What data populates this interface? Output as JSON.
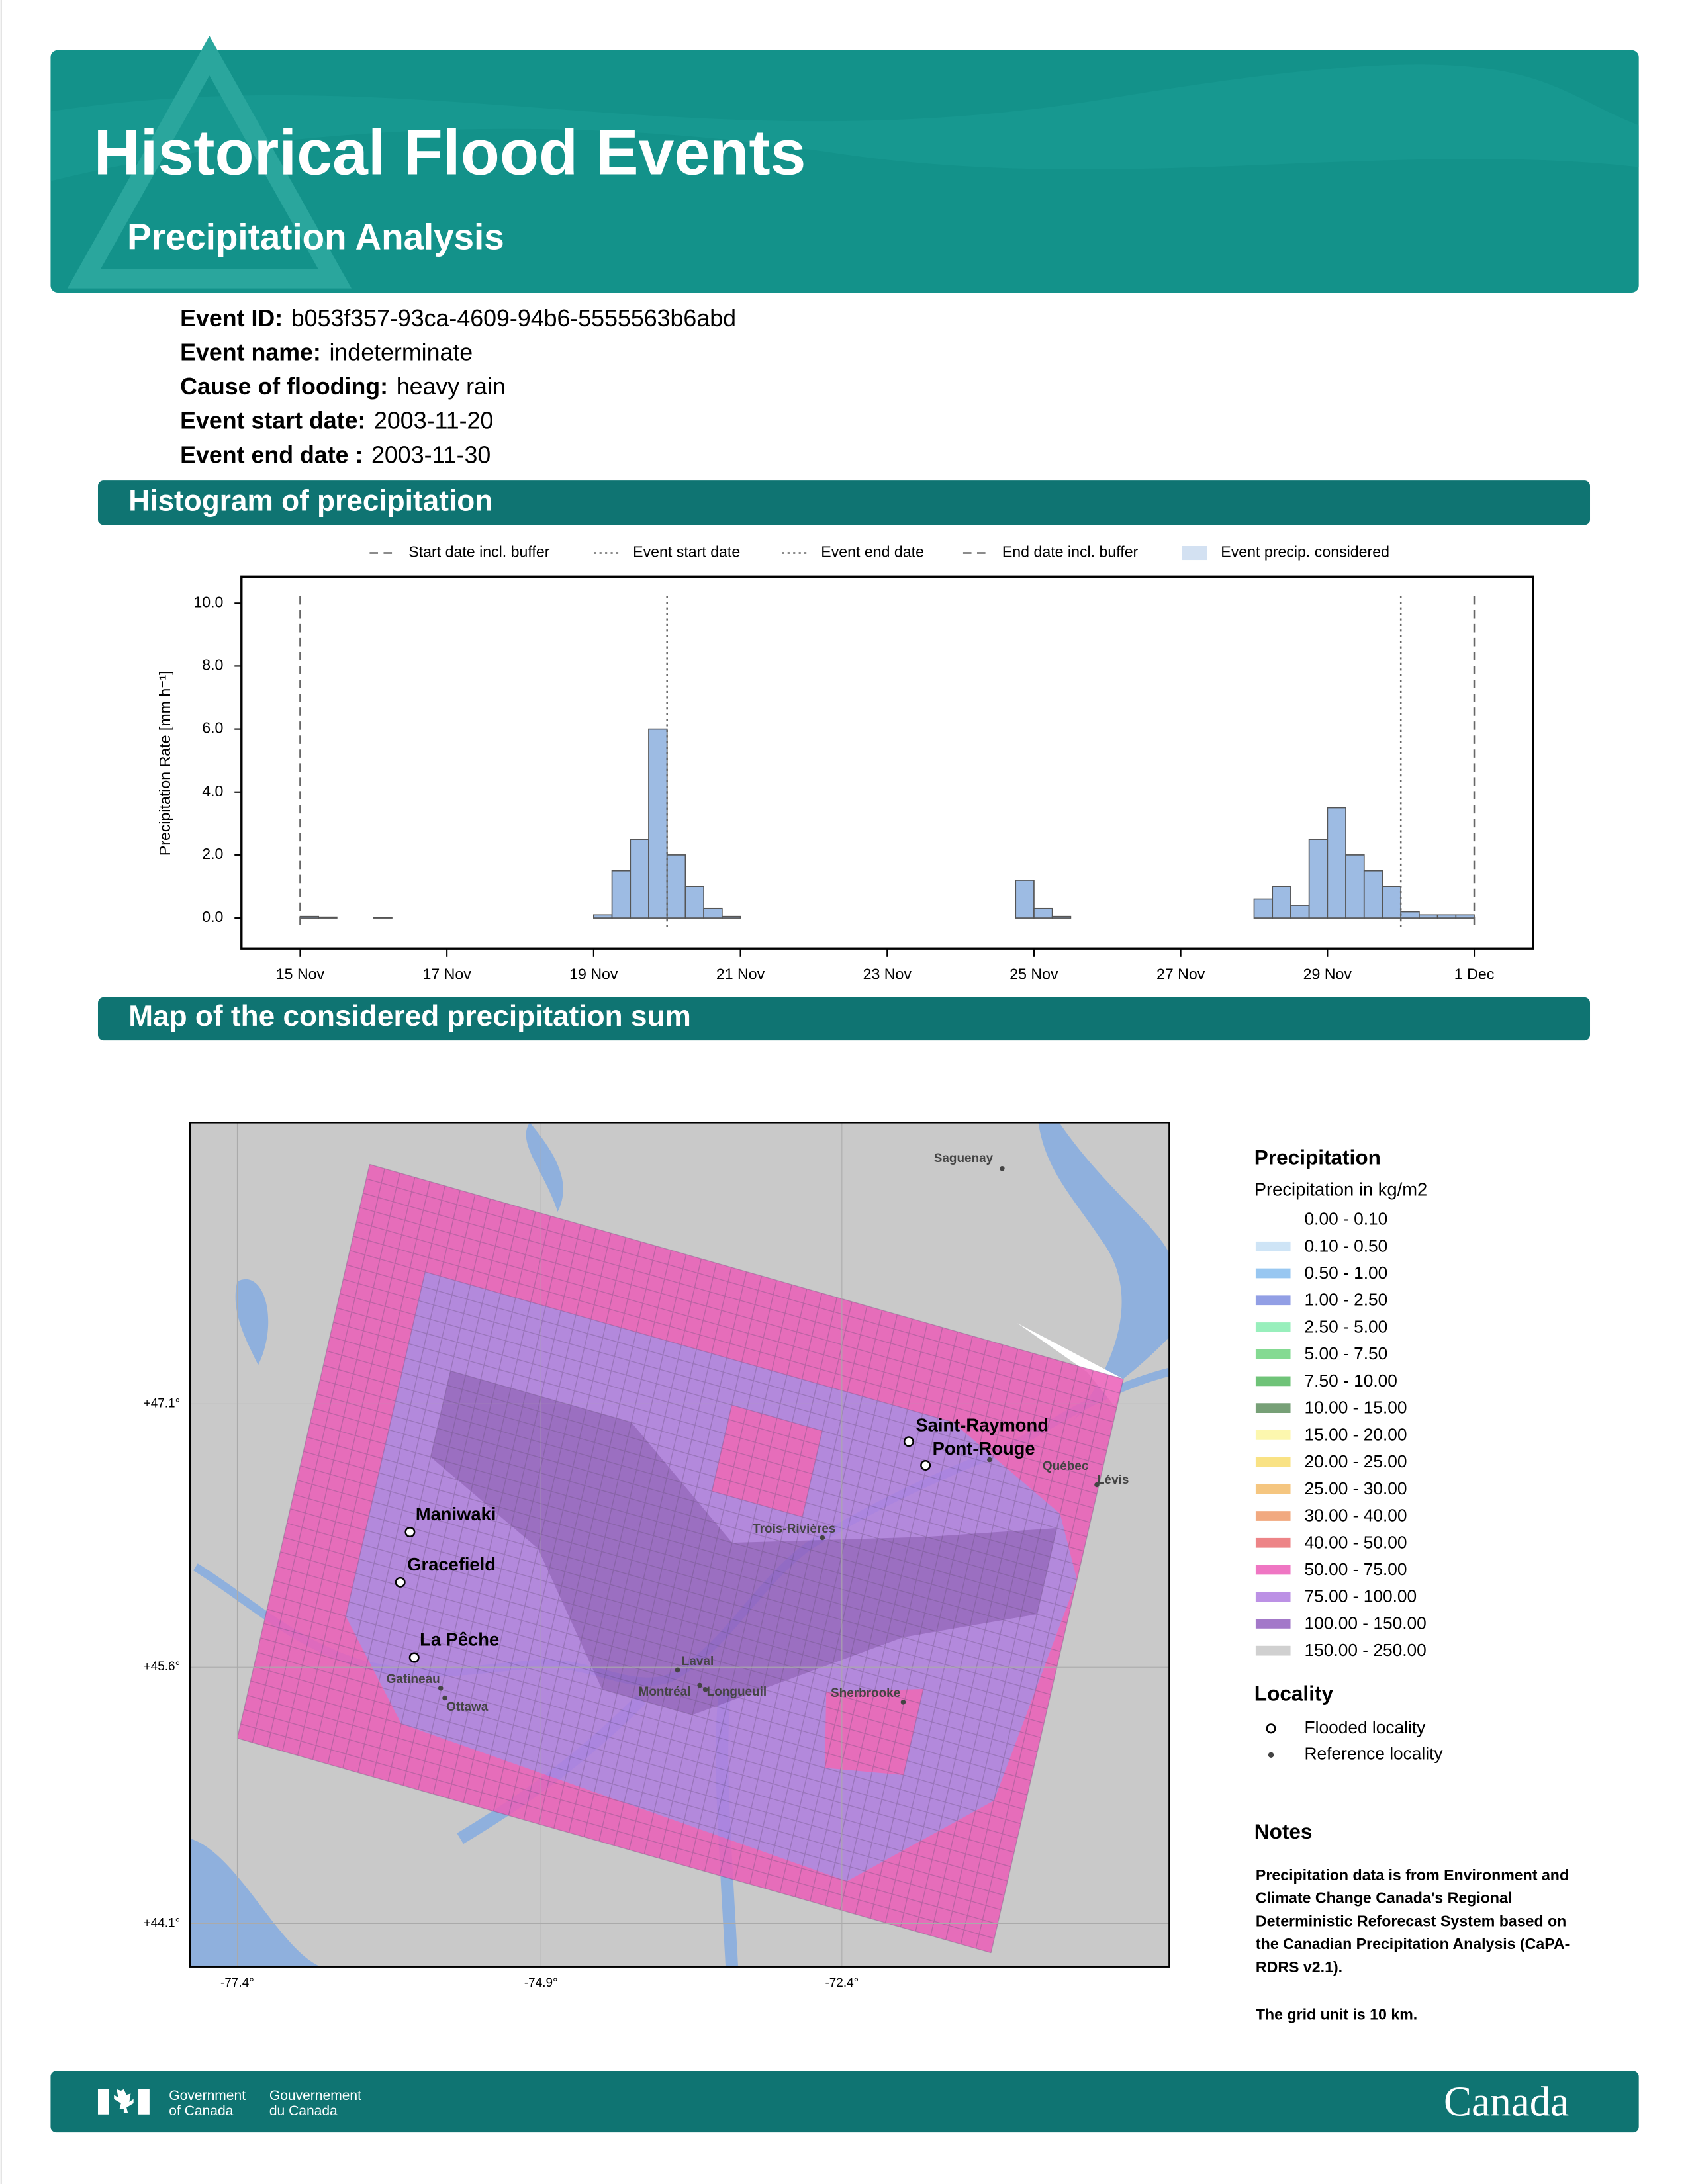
{
  "header": {
    "title": "Historical Flood Events",
    "subtitle": "Precipitation Analysis"
  },
  "event": [
    {
      "label": "Event ID:",
      "value": "b053f357-93ca-4609-94b6-5555563b6abd"
    },
    {
      "label": "Event name:",
      "value": "indeterminate"
    },
    {
      "label": "Cause of flooding:",
      "value": "heavy rain"
    },
    {
      "label": "Event start date:",
      "value": "2003-11-20"
    },
    {
      "label": "Event end date :",
      "value": "2003-11-30"
    }
  ],
  "sections": [
    "Histogram of precipitation",
    "Map of the considered precipitation sum"
  ],
  "chart_data": {
    "type": "histogram",
    "ylabel": "Precipitation Rate [mm h⁻¹]",
    "series_name": "Event precip. considered",
    "color": "#9dbbe3",
    "legend_color": "#d3e1f2",
    "edge_color": "#555555",
    "bins": [
      15,
      15.25,
      15.5,
      15.75,
      16,
      16.25,
      16.5,
      16.75,
      17,
      17.25,
      17.5,
      17.75,
      18,
      18.25,
      18.5,
      18.75,
      19,
      19.25,
      19.5,
      19.75,
      20,
      20.25,
      20.5,
      20.75,
      21,
      21.25,
      21.5,
      21.75,
      22,
      22.25,
      22.5,
      22.75,
      23,
      23.25,
      23.5,
      23.75,
      24,
      24.25,
      24.5,
      24.75,
      25,
      25.25,
      25.5,
      25.75,
      26,
      26.25,
      26.5,
      26.75,
      27,
      27.25,
      27.5,
      27.75,
      28,
      28.25,
      28.5,
      28.75,
      29,
      29.25,
      29.5,
      29.75,
      30,
      30.25,
      30.5,
      30.75,
      31
    ],
    "values": [
      0.05,
      0.03,
      0,
      0,
      0.02,
      0,
      0,
      0,
      0,
      0,
      0,
      0,
      0,
      0,
      0,
      0,
      0.1,
      1.5,
      2.5,
      6.0,
      2.0,
      1.0,
      0.3,
      0.05,
      0,
      0,
      0,
      0,
      0,
      0,
      0,
      0,
      0,
      0,
      0,
      0,
      0,
      0,
      0,
      1.2,
      0.3,
      0.05,
      0,
      0,
      0,
      0,
      0,
      0,
      0,
      0,
      0,
      0,
      0.6,
      1.0,
      0.4,
      2.5,
      3.5,
      2.0,
      1.5,
      1.0,
      0.2,
      0.1,
      0.1,
      0.1
    ],
    "markers": [
      {
        "name": "Start date incl. buffer",
        "value": 15,
        "style": "dashed"
      },
      {
        "name": "Event start date",
        "value": 20,
        "style": "dotted"
      },
      {
        "name": "Event end date",
        "value": 30,
        "style": "dotted"
      },
      {
        "name": "End date incl. buffer",
        "value": 31,
        "style": "dashed"
      }
    ],
    "xlim": [
      14.2,
      31.8
    ],
    "ylim": [
      -0.97,
      10.84
    ],
    "xticks": [
      {
        "value": 15,
        "label": "15 Nov"
      },
      {
        "value": 17,
        "label": "17 Nov"
      },
      {
        "value": 19,
        "label": "19 Nov"
      },
      {
        "value": 21,
        "label": "21 Nov"
      },
      {
        "value": 23,
        "label": "23 Nov"
      },
      {
        "value": 25,
        "label": "25 Nov"
      },
      {
        "value": 27,
        "label": "27 Nov"
      },
      {
        "value": 29,
        "label": "29 Nov"
      },
      {
        "value": 31,
        "label": "1 Dec"
      }
    ],
    "yticks": [
      {
        "value": 0,
        "label": "0.0"
      },
      {
        "value": 2,
        "label": "2.0"
      },
      {
        "value": 4,
        "label": "4.0"
      },
      {
        "value": 6,
        "label": "6.0"
      },
      {
        "value": 8,
        "label": "8.0"
      },
      {
        "value": 10,
        "label": "10.0"
      }
    ]
  },
  "map": {
    "lat_labels": [
      "+47.1°",
      "+45.6°",
      "+44.1°"
    ],
    "lon_labels": [
      "-77.4°",
      "-74.9°",
      "-72.4°"
    ],
    "flooded": [
      "Saint-Raymond",
      "Pont-Rouge",
      "Maniwaki",
      "Gracefield",
      "La Pêche"
    ],
    "reference": [
      "Saguenay",
      "Québec",
      "Lévis",
      "Trois-Rivières",
      "Laval",
      "Montréal",
      "Longueuil",
      "Sherbrooke",
      "Gatineau",
      "Ottawa"
    ]
  },
  "legend": {
    "title": "Precipitation",
    "subtitle": "Precipitation in kg/m2",
    "classes": [
      {
        "label": "0.00 - 0.10",
        "color": "#ffffff"
      },
      {
        "label": "0.10 - 0.50",
        "color": "#c6dff5"
      },
      {
        "label": "0.50 - 1.00",
        "color": "#86bdee"
      },
      {
        "label": "1.00 - 2.50",
        "color": "#7f8ee0"
      },
      {
        "label": "2.50 - 5.00",
        "color": "#86ecb0"
      },
      {
        "label": "5.00 - 7.50",
        "color": "#6fd47f"
      },
      {
        "label": "7.50 - 10.00",
        "color": "#56b860"
      },
      {
        "label": "10.00 - 15.00",
        "color": "#5f8f5f"
      },
      {
        "label": "15.00 - 20.00",
        "color": "#fbf6a0"
      },
      {
        "label": "20.00 - 25.00",
        "color": "#f8dd6e"
      },
      {
        "label": "25.00 - 30.00",
        "color": "#f3bc6a"
      },
      {
        "label": "30.00 - 40.00",
        "color": "#ee9a6a"
      },
      {
        "label": "40.00 - 50.00",
        "color": "#ea6f72"
      },
      {
        "label": "50.00 - 75.00",
        "color": "#ec5eb8"
      },
      {
        "label": "75.00 - 100.00",
        "color": "#b07ee0"
      },
      {
        "label": "100.00 - 150.00",
        "color": "#9360c0"
      },
      {
        "label": "150.00 - 250.00",
        "color": "#c8c8c8"
      }
    ],
    "locality_title": "Locality",
    "locality_items": [
      "Flooded locality",
      "Reference locality"
    ]
  },
  "notes": {
    "title": "Notes",
    "lines": [
      "Precipitation data is from Environment and",
      "Climate Change Canada's Regional",
      "Deterministic Reforecast System based on",
      "the Canadian Precipitation Analysis (CaPA-",
      "RDRS v2.1)."
    ],
    "grid": "The grid unit is 10 km."
  },
  "footer": {
    "en": [
      "Government",
      "of Canada"
    ],
    "fr": [
      "Gouvernement",
      "du Canada"
    ],
    "wordmark": "Canada"
  }
}
